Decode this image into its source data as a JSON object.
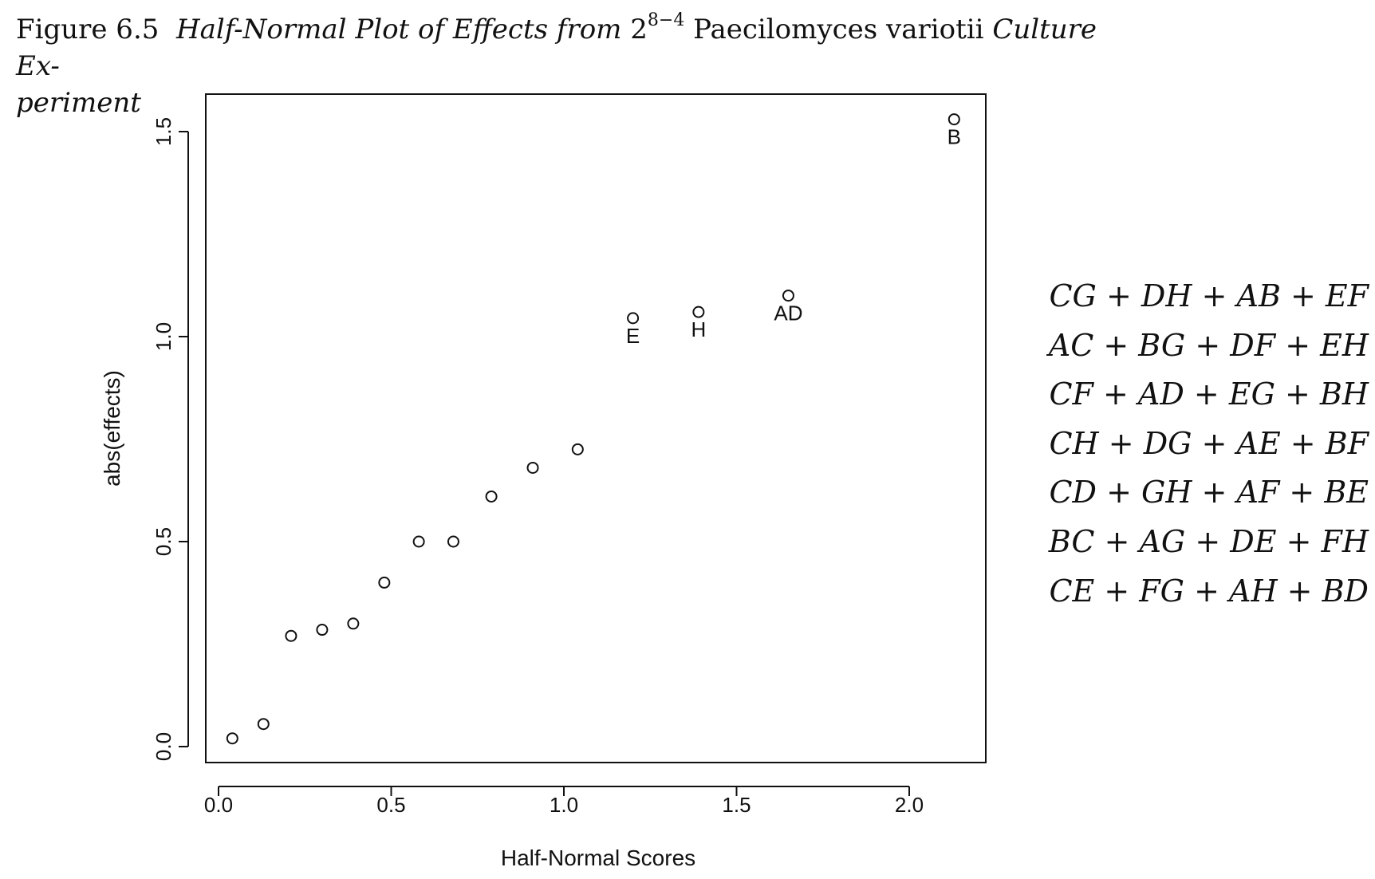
{
  "caption": {
    "prefix": "Figure 6.5",
    "title_part1": "Half-Normal Plot of Effects from",
    "base": "2",
    "exponent": "8−4",
    "organism": "Paecilomyces variotii",
    "title_part2": "Culture Ex-",
    "title_part3": "periment"
  },
  "chart_data": {
    "type": "scatter",
    "xlabel": "Half-Normal Scores",
    "ylabel": "abs(effects)",
    "xlim": [
      0.0,
      2.2
    ],
    "ylim": [
      0.0,
      1.55
    ],
    "xticks": [
      "0.0",
      "0.5",
      "1.0",
      "1.5",
      "2.0"
    ],
    "yticks": [
      "0.0",
      "0.5",
      "1.0",
      "1.5"
    ],
    "grid": false,
    "points": [
      {
        "x": 0.04,
        "y": 0.02,
        "label": ""
      },
      {
        "x": 0.13,
        "y": 0.055,
        "label": ""
      },
      {
        "x": 0.21,
        "y": 0.27,
        "label": ""
      },
      {
        "x": 0.3,
        "y": 0.285,
        "label": ""
      },
      {
        "x": 0.39,
        "y": 0.3,
        "label": ""
      },
      {
        "x": 0.48,
        "y": 0.4,
        "label": ""
      },
      {
        "x": 0.58,
        "y": 0.5,
        "label": ""
      },
      {
        "x": 0.68,
        "y": 0.5,
        "label": ""
      },
      {
        "x": 0.79,
        "y": 0.61,
        "label": ""
      },
      {
        "x": 0.91,
        "y": 0.68,
        "label": ""
      },
      {
        "x": 1.04,
        "y": 0.725,
        "label": ""
      },
      {
        "x": 1.2,
        "y": 1.045,
        "label": "E"
      },
      {
        "x": 1.39,
        "y": 1.06,
        "label": "H"
      },
      {
        "x": 1.65,
        "y": 1.1,
        "label": "AD"
      },
      {
        "x": 2.13,
        "y": 1.53,
        "label": "B"
      }
    ]
  },
  "aliases": [
    "CG + DH + AB + EF",
    "AC + BG + DF + EH",
    "CF + AD + EG + BH",
    "CH + DG + AE + BF",
    "CD + GH + AF + BE",
    "BC + AG + DE + FH",
    "CE + FG + AH + BD"
  ]
}
